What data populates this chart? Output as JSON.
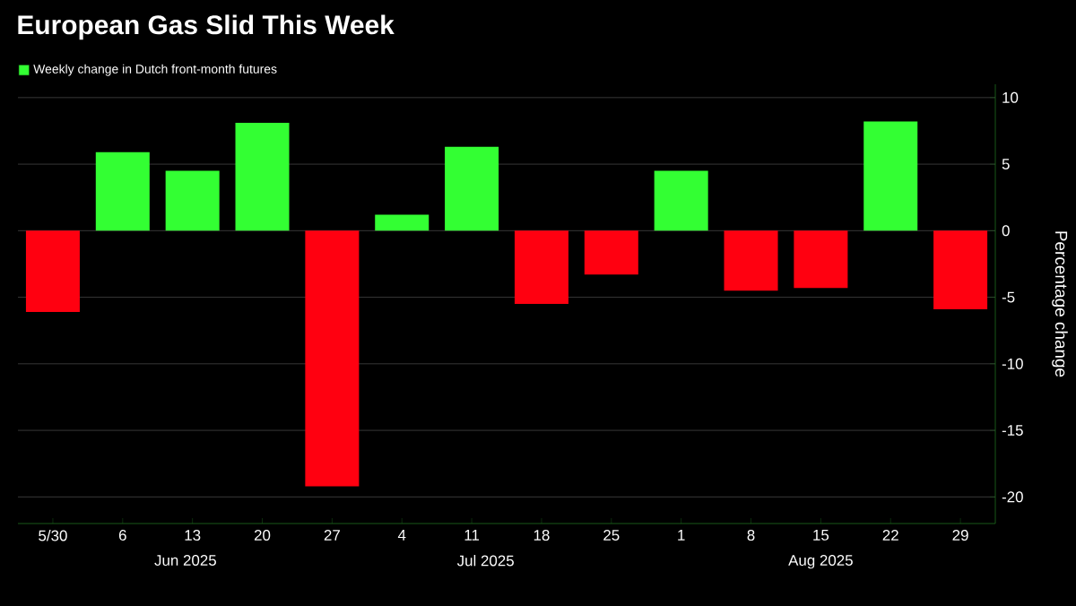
{
  "chart_data": {
    "type": "bar",
    "title": "European Gas Slid This Week",
    "ylabel": "Percentage change",
    "categories": [
      "5/30",
      "6",
      "13",
      "20",
      "27",
      "4",
      "11",
      "18",
      "25",
      "1",
      "8",
      "15",
      "22",
      "29"
    ],
    "series": [
      {
        "name": "Weekly change in Dutch front-month futures",
        "color": "#33ff33",
        "values": [
          -6.1,
          5.9,
          4.5,
          8.1,
          -19.2,
          1.2,
          6.3,
          -5.5,
          -3.3,
          4.5,
          -4.5,
          -4.3,
          8.2,
          -5.9
        ],
        "colors": [
          "#ff0010",
          "#33ff33",
          "#33ff33",
          "#33ff33",
          "#ff0010",
          "#33ff33",
          "#33ff33",
          "#ff0010",
          "#ff0010",
          "#33ff33",
          "#ff0010",
          "#ff0010",
          "#33ff33",
          "#ff0010"
        ]
      }
    ],
    "ylim": [
      -22,
      11
    ],
    "yticks": [
      -20,
      -15,
      -10,
      -5,
      0,
      5,
      10
    ],
    "grid": "y",
    "legend": "top left",
    "annotations": [
      "Jun 2025",
      "Jul 2025",
      "Aug 2025"
    ]
  }
}
